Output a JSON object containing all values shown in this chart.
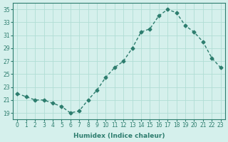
{
  "x": [
    0,
    1,
    2,
    3,
    4,
    5,
    6,
    7,
    8,
    9,
    10,
    11,
    12,
    13,
    14,
    15,
    16,
    17,
    18,
    19,
    20,
    21,
    22,
    23
  ],
  "y": [
    22.0,
    21.5,
    21.0,
    21.0,
    20.5,
    20.0,
    19.0,
    19.3,
    21.0,
    22.5,
    24.5,
    26.0,
    27.0,
    29.0,
    31.5,
    32.0,
    34.0,
    35.0,
    34.5,
    32.5,
    31.5,
    30.0,
    27.5,
    26.0
  ],
  "xlabel": "Humidex (Indice chaleur)",
  "ylabel": "",
  "bg_color": "#d5f0ec",
  "line_color": "#2d7d6e",
  "marker_color": "#2d7d6e",
  "grid_color": "#b0ddd5",
  "ylim": [
    18,
    36
  ],
  "yticks": [
    19,
    21,
    23,
    25,
    27,
    29,
    31,
    33,
    35
  ],
  "xticks": [
    0,
    1,
    2,
    3,
    4,
    5,
    6,
    7,
    8,
    9,
    10,
    11,
    12,
    13,
    14,
    15,
    16,
    17,
    18,
    19,
    20,
    21,
    22,
    23
  ]
}
